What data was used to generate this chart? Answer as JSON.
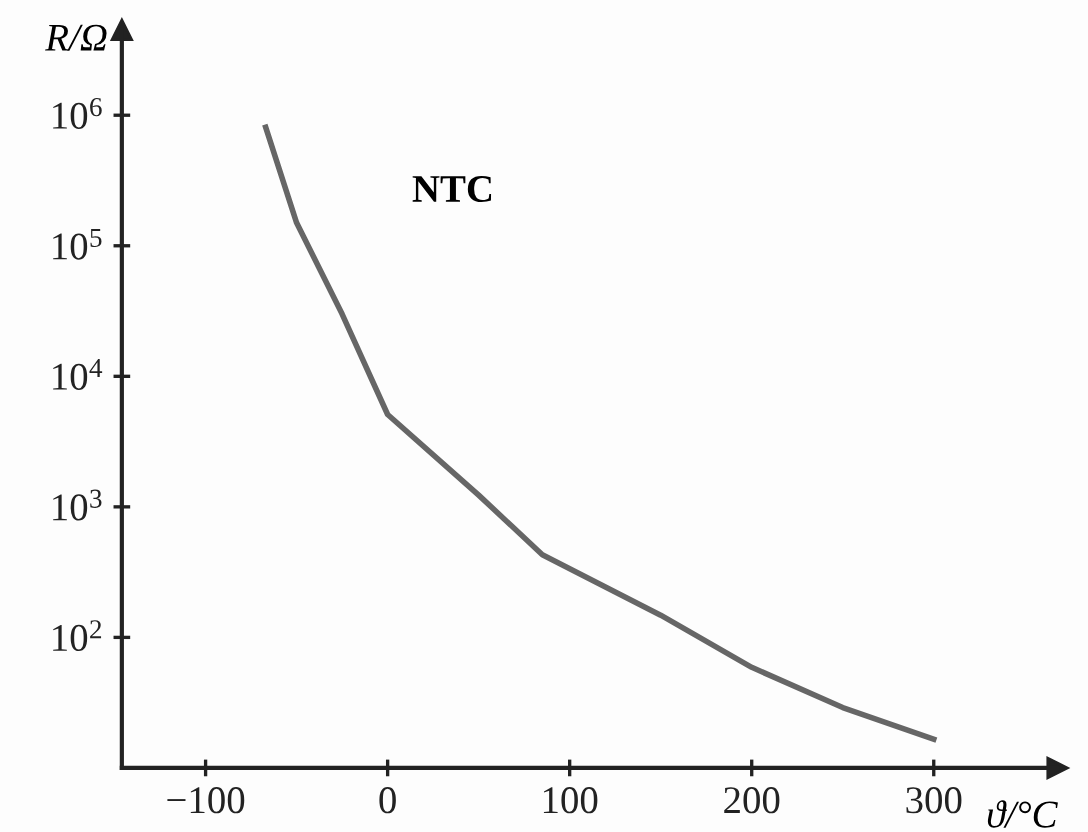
{
  "chart_data": {
    "type": "line",
    "xlabel": "ϑ/°C",
    "ylabel": "R/Ω",
    "log": "y",
    "grid": false,
    "legend": false,
    "marker": "none",
    "line_style": "solid",
    "series": [
      {
        "name": "NTC",
        "color": "#666666",
        "x": [
          -67,
          -50,
          -25,
          0,
          50,
          85,
          150,
          200,
          250,
          300
        ],
        "values": [
          810000,
          150000,
          30000,
          5100,
          1230,
          430,
          148,
          59,
          29,
          16.6
        ]
      }
    ],
    "xlim": [
      -146,
      368
    ],
    "xticks": [
      {
        "value": -100,
        "label": "−100"
      },
      0,
      100,
      200,
      300
    ],
    "ylim": [
      10,
      4500000
    ],
    "yticks": [
      {
        "value": 100,
        "label": "10$^{2}$"
      },
      {
        "value": 1000,
        "label": "10$^{3}$"
      },
      {
        "value": 10000,
        "label": "10$^{4}$"
      },
      {
        "value": 100000,
        "label": "10$^{5}$"
      },
      {
        "value": 1000000,
        "label": "10$^{6}$"
      }
    ]
  }
}
